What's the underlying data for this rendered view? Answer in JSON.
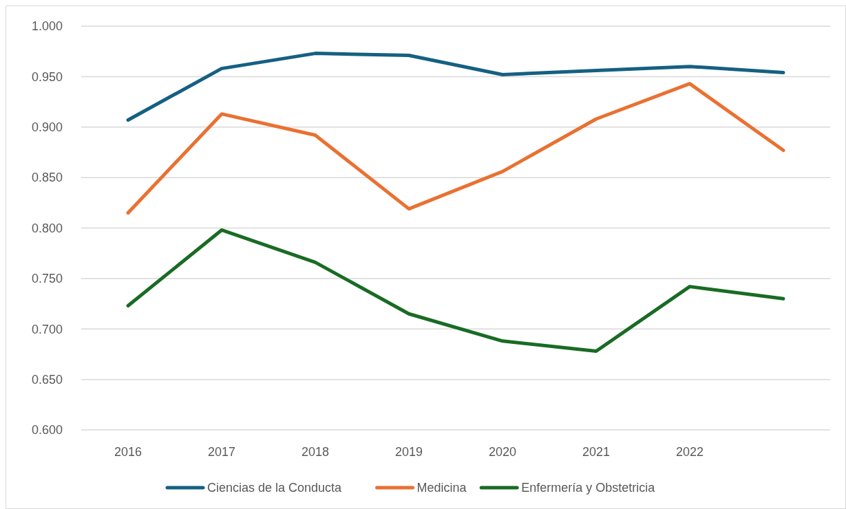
{
  "chart_data": {
    "type": "line",
    "categories": [
      "2016",
      "2017",
      "2018",
      "2019",
      "2020",
      "2021",
      "2022",
      null
    ],
    "series": [
      {
        "name": "Ciencias de la Conducta",
        "color": "#156082",
        "values": [
          0.907,
          0.958,
          0.973,
          0.971,
          0.952,
          0.956,
          0.96,
          0.954
        ]
      },
      {
        "name": "Medicina",
        "color": "#e97132",
        "values": [
          0.815,
          0.913,
          0.892,
          0.819,
          0.856,
          0.908,
          0.943,
          0.877
        ]
      },
      {
        "name": "Enfermería y Obstetricia",
        "color": "#196b24",
        "values": [
          0.723,
          0.798,
          0.766,
          0.715,
          0.688,
          0.678,
          0.742,
          0.73
        ]
      }
    ],
    "ylim": [
      0.6,
      1.0
    ],
    "yticks": [
      {
        "value": 0.6,
        "label": "0.600"
      },
      {
        "value": 0.65,
        "label": "0.650"
      },
      {
        "value": 0.7,
        "label": "0.700"
      },
      {
        "value": 0.75,
        "label": "0.750"
      },
      {
        "value": 0.8,
        "label": "0.800"
      },
      {
        "value": 0.85,
        "label": "0.850"
      },
      {
        "value": 0.9,
        "label": "0.900"
      },
      {
        "value": 0.95,
        "label": "0.950"
      },
      {
        "value": 1.0,
        "label": "1.000"
      }
    ],
    "grid": "y",
    "legend": "bottom",
    "marker": "none",
    "line_style": "solid"
  }
}
